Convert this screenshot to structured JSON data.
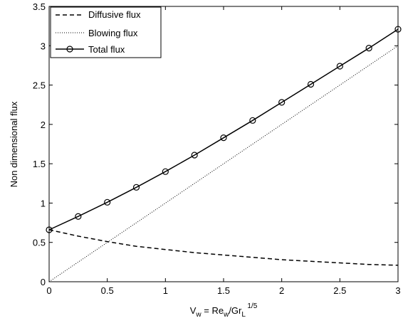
{
  "chart_data": {
    "type": "line",
    "title": "",
    "xlabel": {
      "parts": [
        "V",
        "w",
        " = Re",
        "w",
        "/Gr",
        "L",
        " 1/5"
      ],
      "text": "V_w = Re_w/Gr_L 1/5"
    },
    "ylabel": "Non dimensional flux",
    "xlim": [
      0,
      3
    ],
    "ylim": [
      0,
      3.5
    ],
    "xticks": [
      "0",
      "0.5",
      "1",
      "1.5",
      "2",
      "2.5",
      "3"
    ],
    "yticks": [
      "0",
      "0.5",
      "1",
      "1.5",
      "2",
      "2.5",
      "3",
      "3.5"
    ],
    "grid": false,
    "legend_position": "top-left",
    "series": [
      {
        "name": "Diffusive flux",
        "style": "dashed",
        "marker": "none",
        "color": "#000000",
        "x": [
          0,
          0.25,
          0.5,
          0.75,
          1,
          1.25,
          1.5,
          1.75,
          2,
          2.25,
          2.5,
          2.75,
          3
        ],
        "y": [
          0.66,
          0.58,
          0.51,
          0.45,
          0.41,
          0.37,
          0.34,
          0.31,
          0.28,
          0.26,
          0.24,
          0.22,
          0.21
        ]
      },
      {
        "name": "Blowing flux",
        "style": "dotted",
        "marker": "none",
        "color": "#000000",
        "x": [
          0,
          3
        ],
        "y": [
          0,
          3
        ]
      },
      {
        "name": "Total flux",
        "style": "solid",
        "marker": "circle",
        "color": "#000000",
        "x": [
          0,
          0.25,
          0.5,
          0.75,
          1,
          1.25,
          1.5,
          1.75,
          2,
          2.25,
          2.5,
          2.75,
          3
        ],
        "y": [
          0.66,
          0.83,
          1.01,
          1.2,
          1.4,
          1.61,
          1.83,
          2.05,
          2.28,
          2.51,
          2.74,
          2.97,
          3.21
        ]
      }
    ]
  }
}
